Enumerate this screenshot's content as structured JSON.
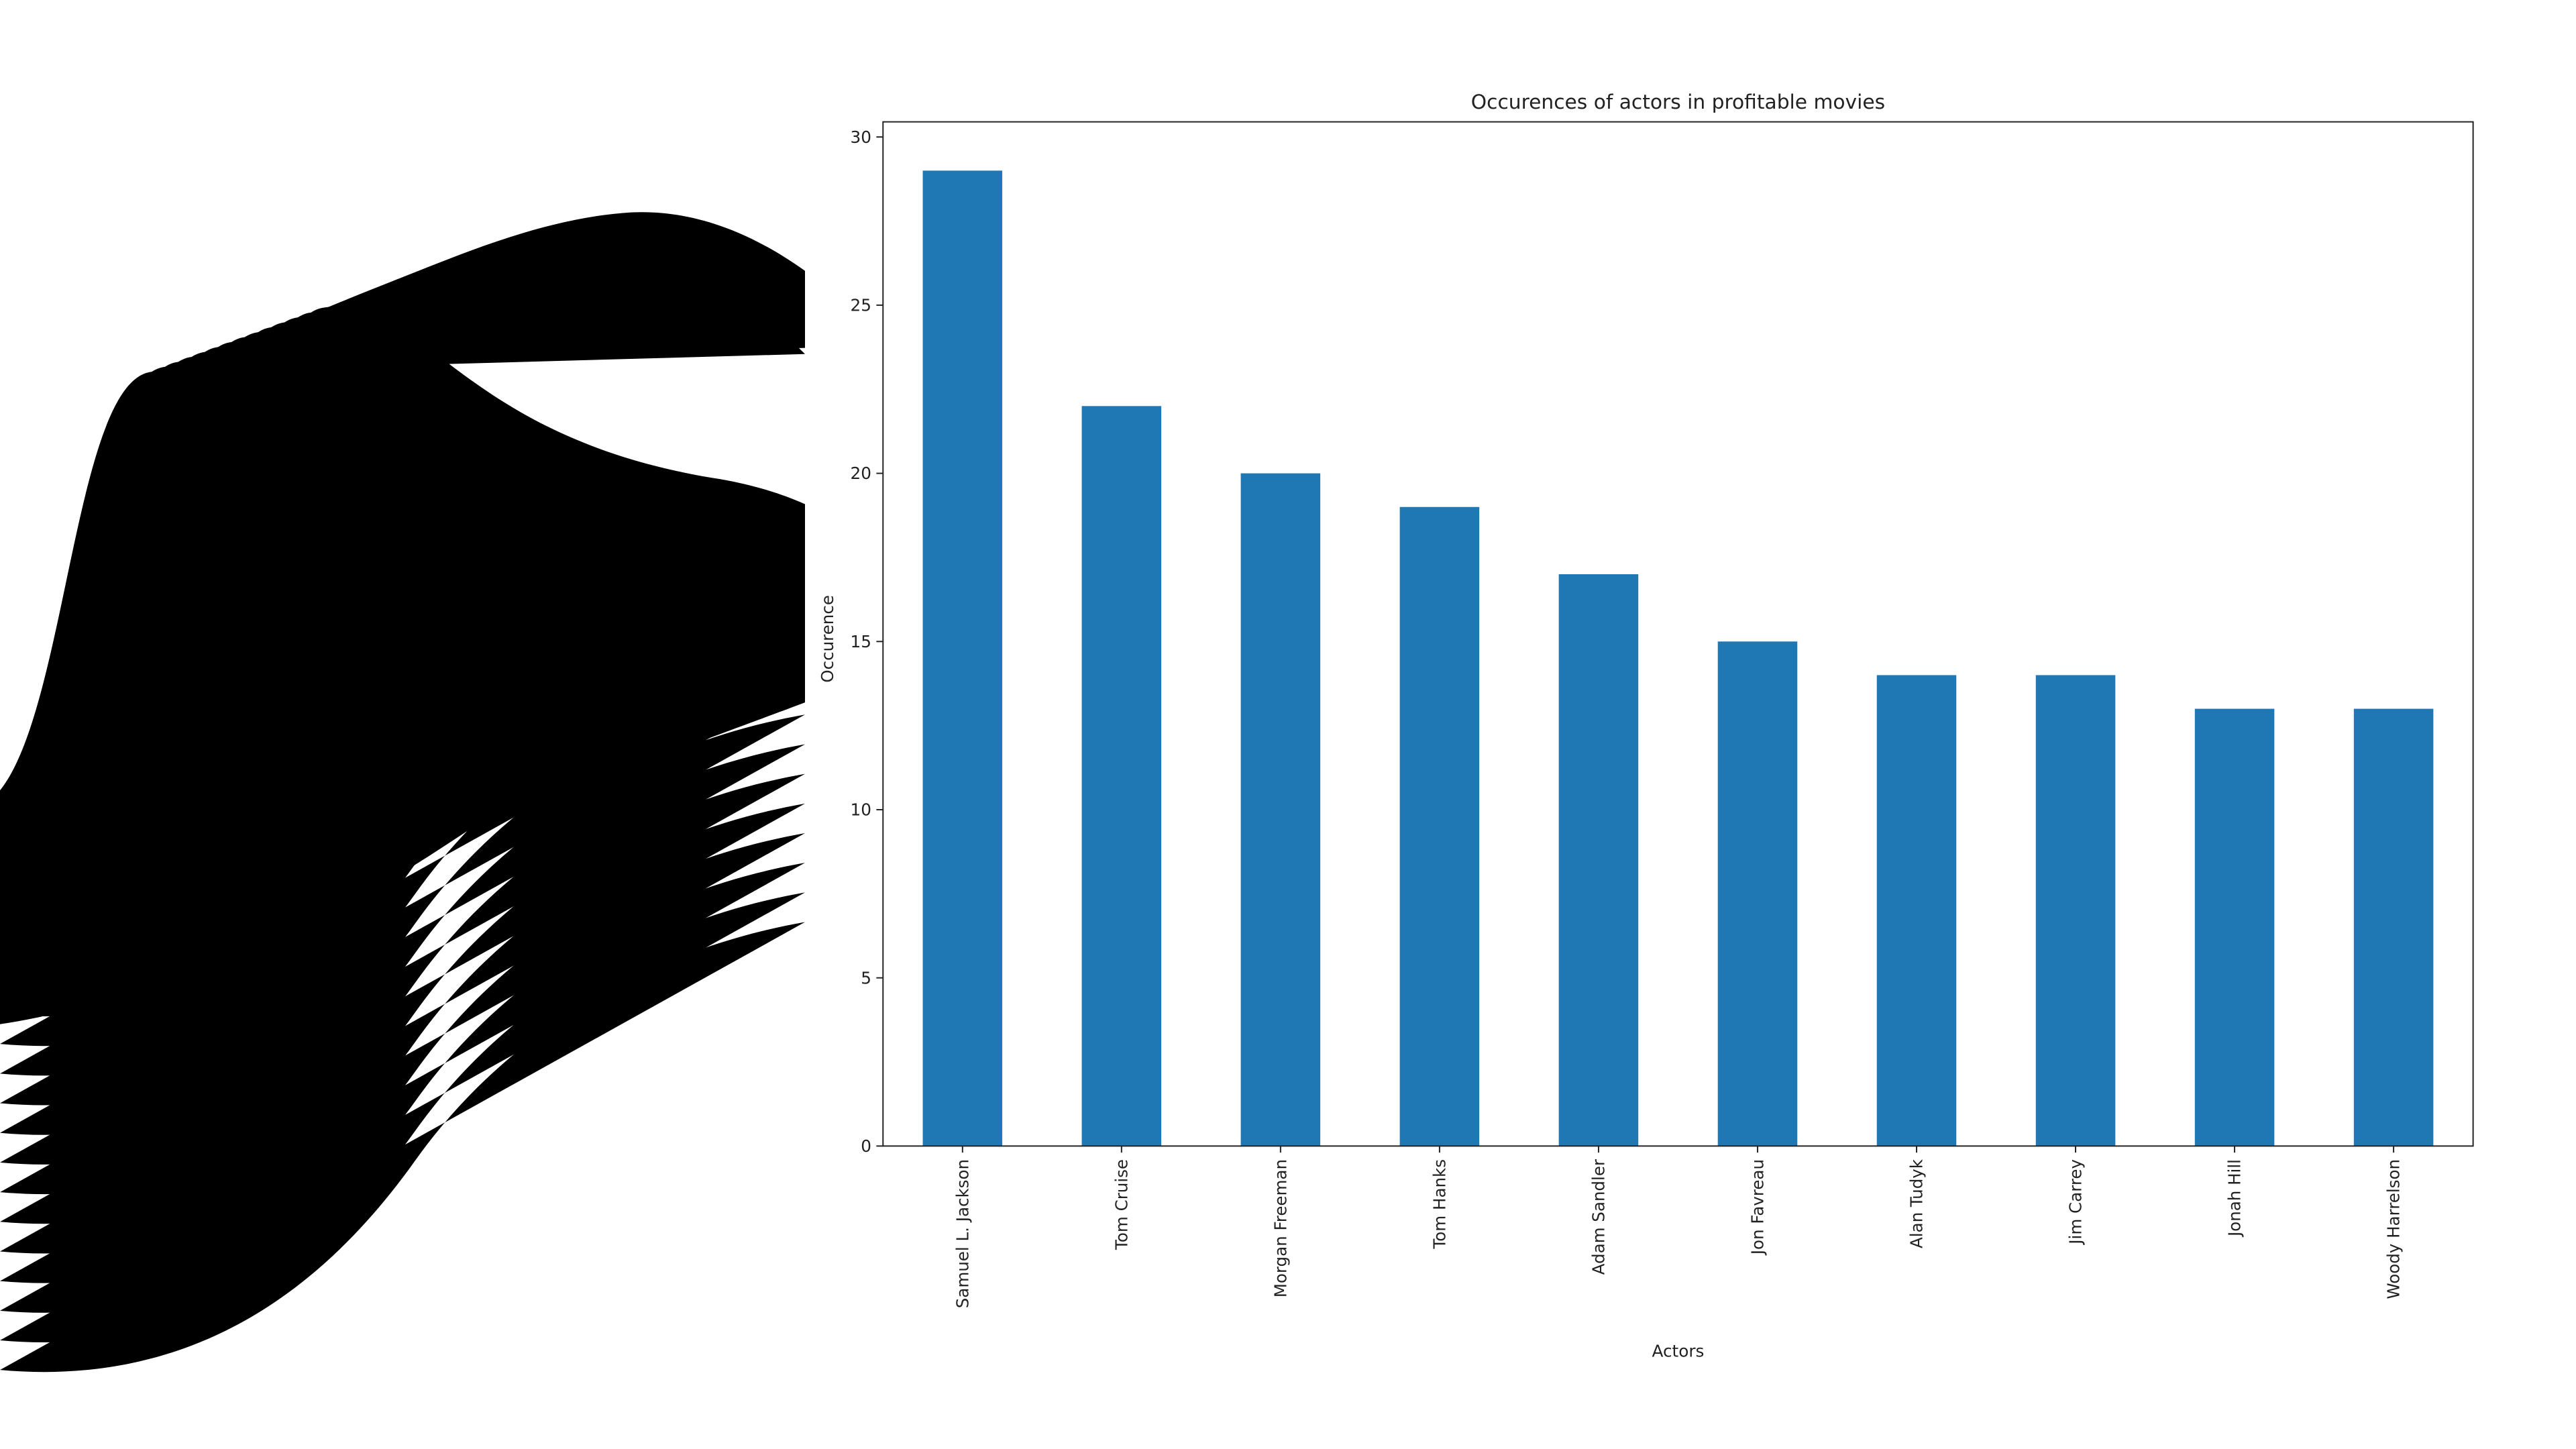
{
  "chart_data": {
    "type": "bar",
    "title": "Occurences of actors in profitable movies",
    "x_label": "Actors",
    "y_label": "Occurence",
    "categories": [
      "Samuel L. Jackson",
      "Tom Cruise",
      "Morgan Freeman",
      "Tom Hanks",
      "Adam Sandler",
      "Jon Favreau",
      "Alan Tudyk",
      "Jim Carrey",
      "Jonah Hill",
      "Woody Harrelson"
    ],
    "values": [
      29,
      22,
      20,
      19,
      17,
      15,
      14,
      14,
      13,
      13
    ],
    "color": "#1f77b4",
    "ylim": [
      0,
      30.45
    ],
    "yticks": [
      0,
      5,
      10,
      15,
      20,
      25,
      30
    ],
    "grid": false
  }
}
